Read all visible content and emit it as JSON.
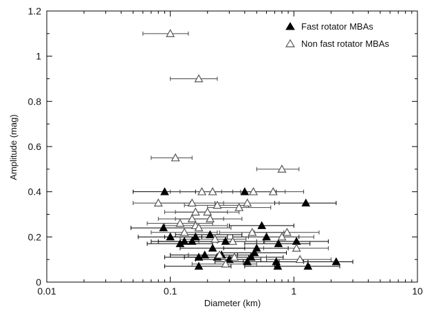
{
  "chart_data": {
    "type": "scatter",
    "title": "",
    "xlabel": "Diameter (km)",
    "ylabel": "Amplitude (mag)",
    "xscale": "log",
    "xlim": [
      0.01,
      10
    ],
    "ylim": [
      0,
      1.2
    ],
    "x_ticks": [
      {
        "value": 0.01,
        "label": "0.01"
      },
      {
        "value": 0.1,
        "label": "0.1"
      },
      {
        "value": 1,
        "label": "1"
      },
      {
        "value": 10,
        "label": "10"
      }
    ],
    "y_ticks": [
      {
        "value": 0,
        "label": "0"
      },
      {
        "value": 0.2,
        "label": "0.2"
      },
      {
        "value": 0.4,
        "label": "0.4"
      },
      {
        "value": 0.6,
        "label": "0.6"
      },
      {
        "value": 0.8,
        "label": "0.8"
      },
      {
        "value": 1.0,
        "label": "1"
      },
      {
        "value": 1.2,
        "label": "1.2"
      }
    ],
    "grid": false,
    "legend_position": "top-right",
    "error_bars": "horizontal, diameter range",
    "series": [
      {
        "name": "Fast rotator MBAs",
        "marker": "filled-triangle",
        "color": "#000000",
        "points": [
          {
            "x": 0.09,
            "y": 0.4,
            "xmin": 0.05,
            "xmax": 0.16
          },
          {
            "x": 0.4,
            "y": 0.4,
            "xmin": 0.22,
            "xmax": 0.72
          },
          {
            "x": 1.25,
            "y": 0.35,
            "xmin": 0.7,
            "xmax": 2.2
          },
          {
            "x": 0.088,
            "y": 0.24,
            "xmin": 0.048,
            "xmax": 0.16
          },
          {
            "x": 0.55,
            "y": 0.25,
            "xmin": 0.3,
            "xmax": 1.0
          },
          {
            "x": 0.1,
            "y": 0.2,
            "xmin": 0.055,
            "xmax": 0.18
          },
          {
            "x": 0.12,
            "y": 0.17,
            "xmin": 0.065,
            "xmax": 0.22
          },
          {
            "x": 0.13,
            "y": 0.18,
            "xmin": 0.07,
            "xmax": 0.24
          },
          {
            "x": 0.16,
            "y": 0.2,
            "xmin": 0.09,
            "xmax": 0.29
          },
          {
            "x": 0.21,
            "y": 0.21,
            "xmin": 0.11,
            "xmax": 0.38
          },
          {
            "x": 0.15,
            "y": 0.18,
            "xmin": 0.08,
            "xmax": 0.27
          },
          {
            "x": 0.22,
            "y": 0.15,
            "xmin": 0.12,
            "xmax": 0.4
          },
          {
            "x": 0.28,
            "y": 0.18,
            "xmin": 0.15,
            "xmax": 0.5
          },
          {
            "x": 0.19,
            "y": 0.12,
            "xmin": 0.1,
            "xmax": 0.35
          },
          {
            "x": 0.24,
            "y": 0.11,
            "xmin": 0.13,
            "xmax": 0.43
          },
          {
            "x": 0.26,
            "y": 0.12,
            "xmin": 0.14,
            "xmax": 0.47
          },
          {
            "x": 0.17,
            "y": 0.11,
            "xmin": 0.09,
            "xmax": 0.31
          },
          {
            "x": 0.5,
            "y": 0.15,
            "xmin": 0.27,
            "xmax": 0.9
          },
          {
            "x": 0.48,
            "y": 0.13,
            "xmin": 0.26,
            "xmax": 0.87
          },
          {
            "x": 0.6,
            "y": 0.2,
            "xmin": 0.32,
            "xmax": 1.1
          },
          {
            "x": 0.45,
            "y": 0.11,
            "xmin": 0.24,
            "xmax": 0.82
          },
          {
            "x": 0.42,
            "y": 0.09,
            "xmin": 0.23,
            "xmax": 0.76
          },
          {
            "x": 0.75,
            "y": 0.17,
            "xmin": 0.4,
            "xmax": 1.35
          },
          {
            "x": 1.05,
            "y": 0.18,
            "xmin": 0.57,
            "xmax": 1.9
          },
          {
            "x": 0.72,
            "y": 0.09,
            "xmin": 0.39,
            "xmax": 1.3
          },
          {
            "x": 0.74,
            "y": 0.07,
            "xmin": 0.4,
            "xmax": 1.35
          },
          {
            "x": 1.3,
            "y": 0.07,
            "xmin": 0.7,
            "xmax": 2.35
          },
          {
            "x": 2.2,
            "y": 0.09,
            "xmin": 1.2,
            "xmax": 3.0
          },
          {
            "x": 0.17,
            "y": 0.07,
            "xmin": 0.09,
            "xmax": 0.31
          },
          {
            "x": 0.3,
            "y": 0.1,
            "xmin": 0.16,
            "xmax": 0.54
          }
        ]
      },
      {
        "name": "Non fast rotator MBAs",
        "marker": "open-triangle",
        "color": "#555555",
        "points": [
          {
            "x": 0.1,
            "y": 1.1,
            "xmin": 0.06,
            "xmax": 0.14
          },
          {
            "x": 0.17,
            "y": 0.9,
            "xmin": 0.1,
            "xmax": 0.24
          },
          {
            "x": 0.11,
            "y": 0.55,
            "xmin": 0.07,
            "xmax": 0.15
          },
          {
            "x": 0.8,
            "y": 0.5,
            "xmin": 0.5,
            "xmax": 1.1
          },
          {
            "x": 0.18,
            "y": 0.4,
            "xmin": 0.1,
            "xmax": 0.32
          },
          {
            "x": 0.22,
            "y": 0.4,
            "xmin": 0.12,
            "xmax": 0.4
          },
          {
            "x": 0.47,
            "y": 0.4,
            "xmin": 0.26,
            "xmax": 0.85
          },
          {
            "x": 0.68,
            "y": 0.4,
            "xmin": 0.37,
            "xmax": 1.2
          },
          {
            "x": 0.08,
            "y": 0.35,
            "xmin": 0.05,
            "xmax": 0.145
          },
          {
            "x": 0.15,
            "y": 0.35,
            "xmin": 0.08,
            "xmax": 0.27
          },
          {
            "x": 0.24,
            "y": 0.34,
            "xmin": 0.13,
            "xmax": 0.43
          },
          {
            "x": 0.36,
            "y": 0.33,
            "xmin": 0.2,
            "xmax": 0.65
          },
          {
            "x": 0.42,
            "y": 0.35,
            "xmin": 0.23,
            "xmax": 0.76
          },
          {
            "x": 0.16,
            "y": 0.31,
            "xmin": 0.09,
            "xmax": 0.29
          },
          {
            "x": 0.2,
            "y": 0.31,
            "xmin": 0.11,
            "xmax": 0.36
          },
          {
            "x": 0.15,
            "y": 0.28,
            "xmin": 0.08,
            "xmax": 0.27
          },
          {
            "x": 0.21,
            "y": 0.28,
            "xmin": 0.11,
            "xmax": 0.38
          },
          {
            "x": 0.12,
            "y": 0.26,
            "xmin": 0.065,
            "xmax": 0.22
          },
          {
            "x": 0.16,
            "y": 0.25,
            "xmin": 0.09,
            "xmax": 0.29
          },
          {
            "x": 0.13,
            "y": 0.22,
            "xmin": 0.07,
            "xmax": 0.24
          },
          {
            "x": 0.17,
            "y": 0.24,
            "xmin": 0.09,
            "xmax": 0.31
          },
          {
            "x": 0.23,
            "y": 0.19,
            "xmin": 0.12,
            "xmax": 0.41
          },
          {
            "x": 0.32,
            "y": 0.18,
            "xmin": 0.17,
            "xmax": 0.58
          },
          {
            "x": 0.46,
            "y": 0.22,
            "xmin": 0.25,
            "xmax": 0.83
          },
          {
            "x": 0.88,
            "y": 0.22,
            "xmin": 0.48,
            "xmax": 1.6
          },
          {
            "x": 0.8,
            "y": 0.2,
            "xmin": 0.43,
            "xmax": 1.45
          },
          {
            "x": 1.05,
            "y": 0.15,
            "xmin": 0.57,
            "xmax": 1.9
          },
          {
            "x": 0.33,
            "y": 0.11,
            "xmin": 0.18,
            "xmax": 0.6
          },
          {
            "x": 0.28,
            "y": 0.08,
            "xmin": 0.15,
            "xmax": 0.5
          },
          {
            "x": 1.12,
            "y": 0.1,
            "xmin": 0.6,
            "xmax": 2.0
          },
          {
            "x": 0.25,
            "y": 0.12,
            "xmin": 0.14,
            "xmax": 0.45
          }
        ]
      }
    ]
  }
}
